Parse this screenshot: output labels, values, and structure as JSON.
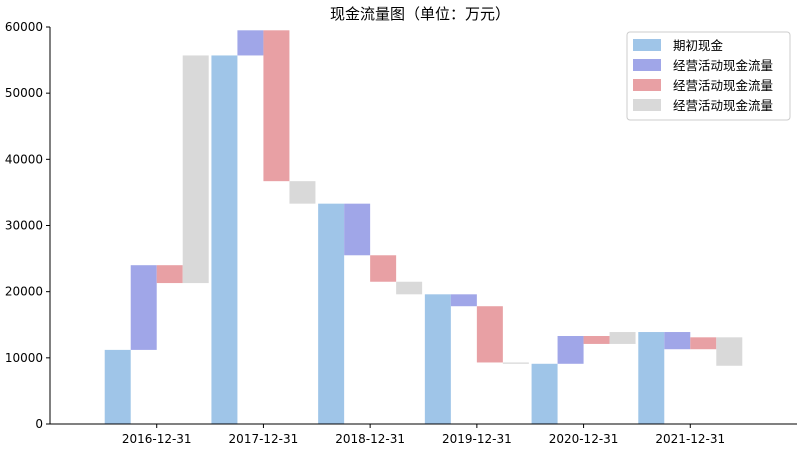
{
  "chart_data": {
    "type": "bar",
    "title": "现金流量图（单位：万元）",
    "xlabel": "",
    "ylabel": "",
    "ylim": [
      0,
      60000
    ],
    "yticks": [
      0,
      10000,
      20000,
      30000,
      40000,
      50000,
      60000
    ],
    "grid": false,
    "legend_position": "top-right",
    "categories": [
      "2016-12-31",
      "2017-12-31",
      "2018-12-31",
      "2019-12-31",
      "2020-12-31",
      "2021-12-31"
    ],
    "series": [
      {
        "name": "期初现金",
        "color": "#9fc5e8",
        "ranges": [
          [
            0,
            11200
          ],
          [
            0,
            55700
          ],
          [
            0,
            33300
          ],
          [
            0,
            19600
          ],
          [
            0,
            9100
          ],
          [
            0,
            13900
          ]
        ]
      },
      {
        "name": "经营活动现金流量",
        "color": "#a0a6e8",
        "ranges": [
          [
            11200,
            24000
          ],
          [
            55700,
            59500
          ],
          [
            25500,
            33300
          ],
          [
            17800,
            19600
          ],
          [
            9100,
            13300
          ],
          [
            11300,
            13900
          ]
        ]
      },
      {
        "name": "经营活动现金流量",
        "color": "#e8a0a4",
        "ranges": [
          [
            21300,
            24000
          ],
          [
            36700,
            59500
          ],
          [
            21500,
            25500
          ],
          [
            9300,
            17800
          ],
          [
            12100,
            13300
          ],
          [
            11300,
            13100
          ]
        ]
      },
      {
        "name": "经营活动现金流量",
        "color": "#d9d9d9",
        "ranges": [
          [
            21300,
            55700
          ],
          [
            33300,
            36700
          ],
          [
            19600,
            21500
          ],
          [
            9100,
            9300
          ],
          [
            12100,
            13900
          ],
          [
            8800,
            13100
          ]
        ]
      }
    ]
  }
}
